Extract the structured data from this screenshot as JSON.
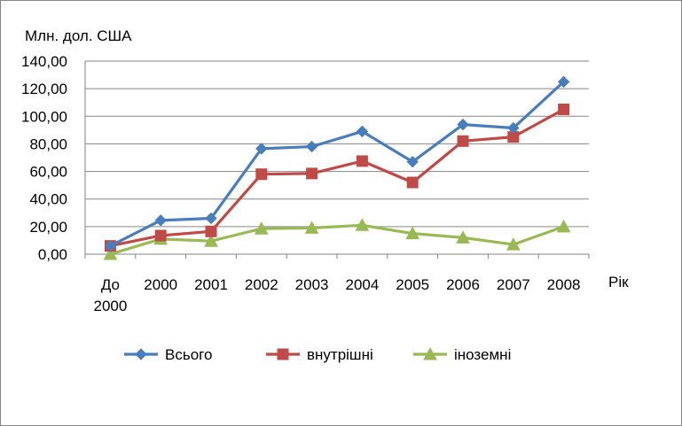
{
  "chart_data": {
    "type": "line",
    "ylabel": "Млн. дол. США",
    "xlabel": "Рік",
    "ylim": [
      0,
      140
    ],
    "yticks": [
      "0,00",
      "20,00",
      "40,00",
      "60,00",
      "80,00",
      "100,00",
      "120,00",
      "140,00"
    ],
    "categories": [
      [
        "До",
        "2000"
      ],
      [
        "2000"
      ],
      [
        "2001"
      ],
      [
        "2002"
      ],
      [
        "2003"
      ],
      [
        "2004"
      ],
      [
        "2005"
      ],
      [
        "2006"
      ],
      [
        "2007"
      ],
      [
        "2008"
      ]
    ],
    "grid": true,
    "legend_position": "bottom",
    "series": [
      {
        "name": "Всього",
        "color": "#4a7ebb",
        "marker": "diamond",
        "values": [
          6,
          24.5,
          26,
          76.5,
          78,
          89,
          67,
          94,
          91.5,
          125
        ]
      },
      {
        "name": "внутрішні",
        "color": "#be4b48",
        "marker": "square",
        "values": [
          6,
          13.5,
          16.5,
          58,
          58.5,
          67.5,
          52,
          82,
          85,
          105
        ]
      },
      {
        "name": "іноземні",
        "color": "#98b954",
        "marker": "triangle",
        "values": [
          0,
          11,
          9.5,
          18.5,
          19,
          21,
          15,
          12,
          7,
          20
        ]
      }
    ]
  }
}
